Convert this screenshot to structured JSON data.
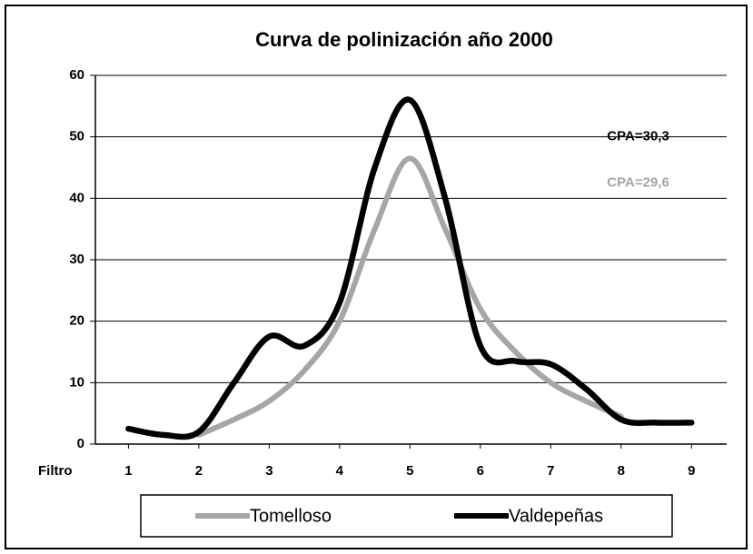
{
  "chart_data": {
    "type": "line",
    "title": "Curva de polinización año 2000",
    "x_axis_label": "Filtro",
    "x": [
      1,
      1.5,
      2,
      2.5,
      3,
      3.5,
      4,
      4.5,
      5,
      5.5,
      6,
      6.5,
      7,
      7.5,
      8,
      8.5,
      9
    ],
    "series": [
      {
        "name": "Tomelloso",
        "color": "#a6a6a6",
        "values": [
          null,
          null,
          1.5,
          4,
          7,
          12,
          20,
          35,
          46.5,
          35,
          22,
          15,
          10,
          7,
          4.5,
          null,
          null
        ]
      },
      {
        "name": "Valdepeñas",
        "color": "#000000",
        "values": [
          2.5,
          1.5,
          2,
          10,
          17.5,
          16,
          23,
          45,
          56,
          40,
          16,
          13.5,
          13,
          9,
          4,
          3.5,
          3.5
        ]
      }
    ],
    "annotations": [
      {
        "text": "CPA=30,3",
        "color": "#000000",
        "x": 7.8,
        "y": 50
      },
      {
        "text": "CPA=29,6",
        "color": "#a6a6a6",
        "x": 7.8,
        "y": 42.5
      }
    ],
    "xlim": [
      0.53,
      9.5
    ],
    "xticks": [
      1,
      2,
      3,
      4,
      5,
      6,
      7,
      8,
      9
    ],
    "ylim": [
      0,
      60
    ],
    "yticks": [
      0,
      10,
      20,
      30,
      40,
      50,
      60
    ],
    "grid": true,
    "legend": "bottom"
  }
}
